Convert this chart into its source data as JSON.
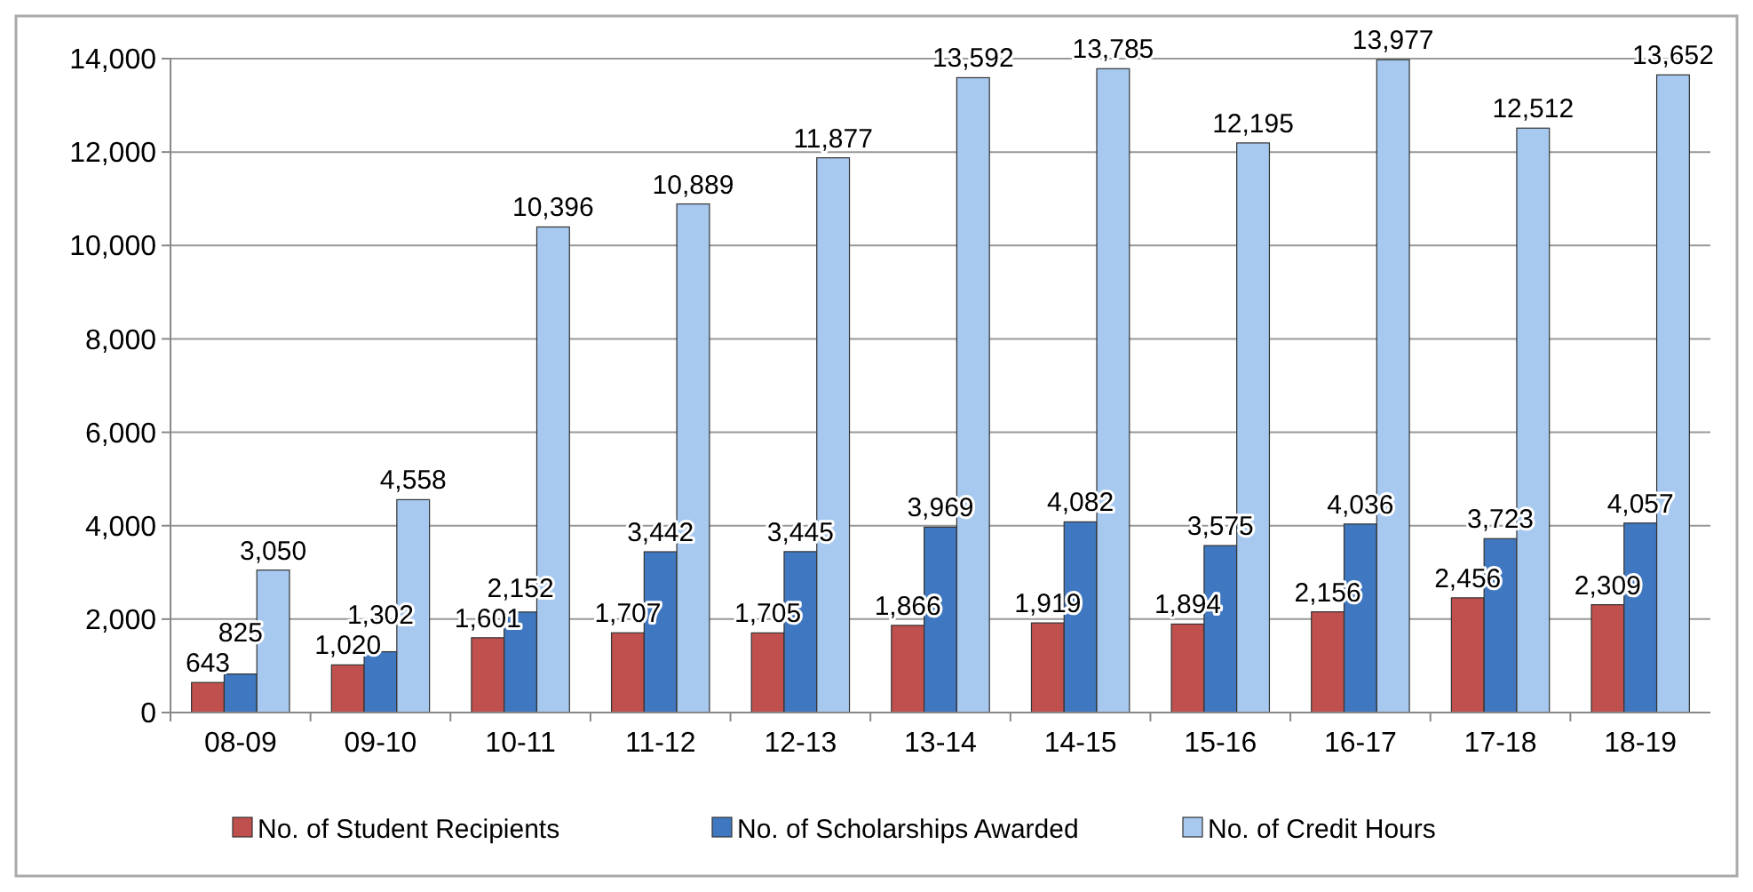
{
  "chart_data": {
    "type": "bar",
    "categories": [
      "08-09",
      "09-10",
      "10-11",
      "11-12",
      "12-13",
      "13-14",
      "14-15",
      "15-16",
      "16-17",
      "17-18",
      "18-19"
    ],
    "series": [
      {
        "name": "No. of Student Recipients",
        "color": "#c0504d",
        "values": [
          643,
          1020,
          1601,
          1707,
          1705,
          1866,
          1919,
          1894,
          2156,
          2456,
          2309
        ],
        "value_labels": [
          "643",
          "1,020",
          "1,601",
          "1,707",
          "1,705",
          "1,866",
          "1,919",
          "1,894",
          "2,156",
          "2,456",
          "2,309"
        ]
      },
      {
        "name": "No. of Scholarships Awarded",
        "color": "#3f78c0",
        "values": [
          825,
          1302,
          2152,
          3442,
          3445,
          3969,
          4082,
          3575,
          4036,
          3723,
          4057
        ],
        "value_labels": [
          "825",
          "1,302",
          "2,152",
          "3,442",
          "3,445",
          "3,969",
          "4,082",
          "3,575",
          "4,036",
          "3,723",
          "4,057"
        ]
      },
      {
        "name": "No. of Credit Hours",
        "color": "#a7c9f0",
        "values": [
          3050,
          4558,
          10396,
          10889,
          11877,
          13592,
          13785,
          12195,
          13977,
          12512,
          13652
        ],
        "value_labels": [
          "3,050",
          "4,558",
          "10,396",
          "10,889",
          "11,877",
          "13,592",
          "13,785",
          "12,195",
          "13,977",
          "12,512",
          "13,652"
        ]
      }
    ],
    "ylim": [
      0,
      14000
    ],
    "yticks": [
      {
        "value": 0,
        "label": "0"
      },
      {
        "value": 2000,
        "label": "2,000"
      },
      {
        "value": 4000,
        "label": "4,000"
      },
      {
        "value": 6000,
        "label": "6,000"
      },
      {
        "value": 8000,
        "label": "8,000"
      },
      {
        "value": 10000,
        "label": "10,000"
      },
      {
        "value": 12000,
        "label": "12,000"
      },
      {
        "value": 14000,
        "label": "14,000"
      }
    ],
    "grid": "y",
    "legend": "bottom"
  }
}
